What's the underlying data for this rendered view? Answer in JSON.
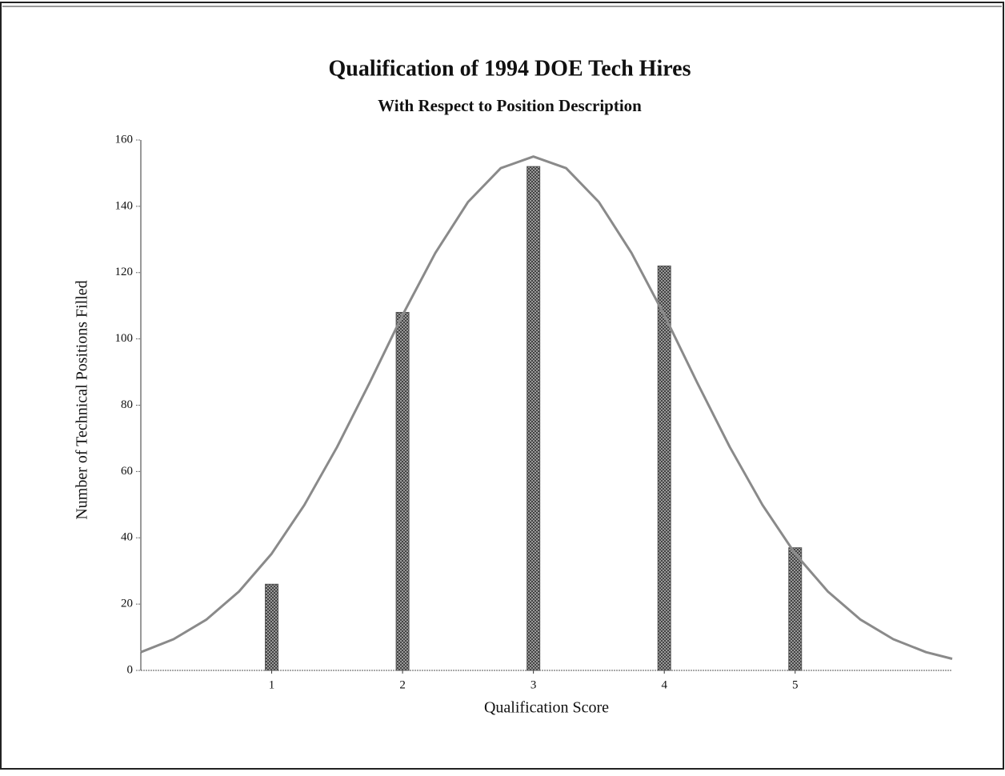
{
  "chart_data": {
    "type": "bar",
    "title": "Qualification of 1994 DOE Tech Hires",
    "subtitle": "With Respect to Position Description",
    "xlabel": "Qualification Score",
    "ylabel": "Number of Technical Positions Filled",
    "xlim": [
      0,
      6.2
    ],
    "xticks": [
      1,
      2,
      3,
      4,
      5
    ],
    "ylim": [
      0,
      160
    ],
    "yticks": [
      0,
      20,
      40,
      60,
      80,
      100,
      120,
      140,
      160
    ],
    "series": [
      {
        "type": "bar",
        "color": "#555555",
        "x": [
          1,
          2,
          3,
          4,
          5
        ],
        "values": [
          26,
          108,
          152,
          122,
          37
        ]
      },
      {
        "type": "line",
        "color": "#8a8a8a",
        "x": [
          0,
          0.25,
          0.5,
          0.75,
          1,
          1.25,
          1.5,
          1.75,
          2,
          2.25,
          2.5,
          2.75,
          3,
          3.25,
          3.5,
          3.75,
          4,
          4.25,
          4.5,
          4.75,
          5,
          5.25,
          5.5,
          5.75,
          6,
          6.2
        ],
        "values": [
          5.5,
          9.4,
          15.3,
          23.8,
          35.2,
          49.9,
          67.4,
          86.9,
          107.2,
          125.9,
          141.3,
          151.5,
          155,
          151.5,
          141.3,
          125.9,
          107.2,
          86.9,
          67.4,
          49.9,
          35.2,
          23.8,
          15.3,
          9.4,
          5.5,
          3.5
        ]
      }
    ]
  }
}
